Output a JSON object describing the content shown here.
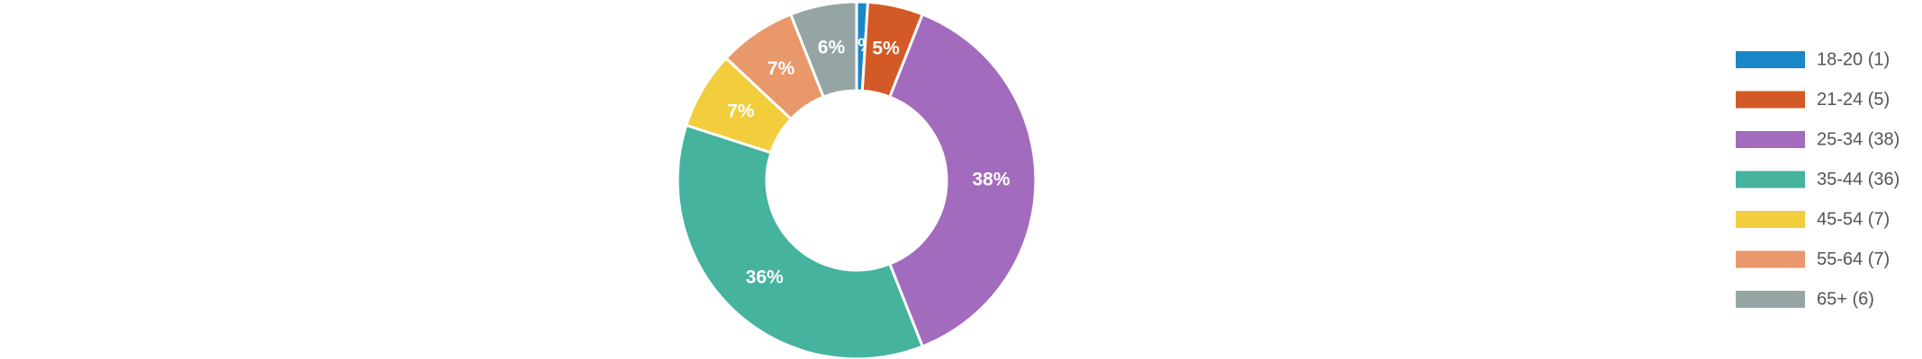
{
  "chart_data": {
    "type": "donut",
    "categories": [
      "18-20 (1)",
      "21-24 (5)",
      "25-34 (38)",
      "35-44 (36)",
      "45-54 (7)",
      "55-64 (7)",
      "65+ (6)"
    ],
    "values": [
      1,
      5,
      38,
      36,
      7,
      7,
      6
    ],
    "value_labels": [
      "1%",
      "5%",
      "38%",
      "36%",
      "7%",
      "7%",
      "6%"
    ],
    "colors": [
      "#1a87c8",
      "#d35a26",
      "#a36bbd",
      "#45b39e",
      "#f2cd3c",
      "#e8986a",
      "#95a5a6"
    ],
    "legend": "right"
  }
}
